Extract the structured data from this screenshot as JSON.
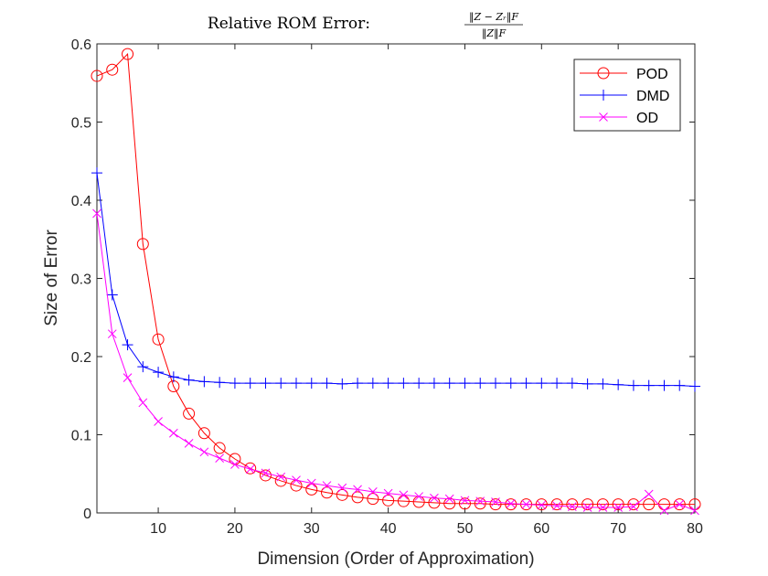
{
  "title": {
    "prefix": "Relative ROM Error:",
    "numerator": "‖Z − Zᵣ‖F",
    "denominator": "‖Z‖F"
  },
  "chart_data": {
    "type": "line",
    "xlabel": "Dimension (Order of Approximation)",
    "ylabel": "Size of Error",
    "xlim": [
      2,
      80
    ],
    "ylim": [
      0,
      0.6
    ],
    "xticks": [
      10,
      20,
      30,
      40,
      50,
      60,
      70,
      80
    ],
    "yticks": [
      0,
      0.1,
      0.2,
      0.3,
      0.4,
      0.5,
      0.6
    ],
    "grid": false,
    "legend_position": "top-right",
    "x": [
      2,
      4,
      6,
      8,
      10,
      12,
      14,
      16,
      18,
      20,
      22,
      24,
      26,
      28,
      30,
      32,
      34,
      36,
      38,
      40,
      42,
      44,
      46,
      48,
      50,
      52,
      54,
      56,
      58,
      60,
      62,
      64,
      66,
      68,
      70,
      72,
      74,
      76,
      78,
      80
    ],
    "series": [
      {
        "name": "POD",
        "color": "#ff0000",
        "marker": "circle",
        "values": [
          0.559,
          0.567,
          0.587,
          0.344,
          0.222,
          0.162,
          0.127,
          0.102,
          0.083,
          0.069,
          0.057,
          0.048,
          0.041,
          0.035,
          0.03,
          0.026,
          0.023,
          0.02,
          0.018,
          0.016,
          0.015,
          0.014,
          0.013,
          0.012,
          0.012,
          0.012,
          0.011,
          0.011,
          0.011,
          0.011,
          0.011,
          0.011,
          0.011,
          0.011,
          0.011,
          0.011,
          0.011,
          0.011,
          0.011,
          0.011
        ]
      },
      {
        "name": "DMD",
        "color": "#0000ff",
        "marker": "plus",
        "values": [
          0.435,
          0.279,
          0.215,
          0.187,
          0.18,
          0.174,
          0.17,
          0.168,
          0.167,
          0.166,
          0.166,
          0.166,
          0.166,
          0.166,
          0.166,
          0.166,
          0.165,
          0.166,
          0.166,
          0.166,
          0.166,
          0.166,
          0.166,
          0.166,
          0.166,
          0.166,
          0.166,
          0.166,
          0.166,
          0.166,
          0.166,
          0.166,
          0.165,
          0.165,
          0.164,
          0.163,
          0.163,
          0.163,
          0.163,
          0.162
        ]
      },
      {
        "name": "OD",
        "color": "#ff00ff",
        "marker": "x",
        "values": [
          0.383,
          0.229,
          0.173,
          0.141,
          0.117,
          0.102,
          0.089,
          0.078,
          0.07,
          0.062,
          0.056,
          0.051,
          0.046,
          0.042,
          0.038,
          0.035,
          0.032,
          0.03,
          0.027,
          0.025,
          0.023,
          0.021,
          0.019,
          0.018,
          0.016,
          0.015,
          0.014,
          0.012,
          0.011,
          0.01,
          0.009,
          0.008,
          0.007,
          0.007,
          0.007,
          0.008,
          0.024,
          0.003,
          0.011,
          0.003
        ]
      }
    ]
  }
}
